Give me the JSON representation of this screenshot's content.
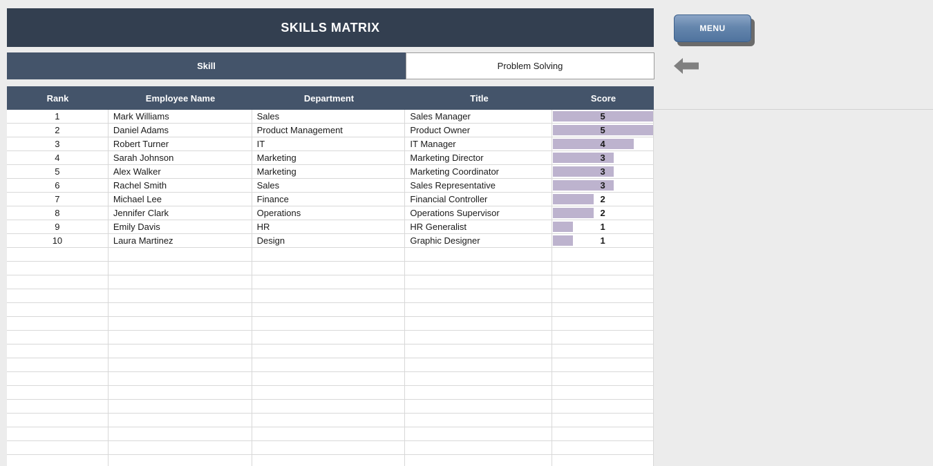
{
  "page": {
    "title": "SKILLS MATRIX"
  },
  "menu_button": {
    "label": "MENU"
  },
  "selector": {
    "label": "Skill",
    "value": "Problem Solving"
  },
  "icons": {
    "back_arrow": "left-arrow"
  },
  "colors": {
    "title_bar": "#333F50",
    "table_header": "#44546A",
    "score_bar": "#BDB3CE",
    "menu_button": "#5F80A9"
  },
  "table": {
    "headers": [
      "Rank",
      "Employee Name",
      "Department",
      "Title",
      "Score"
    ],
    "max_score": 5,
    "rows": [
      {
        "rank": "1",
        "name": "Mark Williams",
        "department": "Sales",
        "title": "Sales Manager",
        "score": 5
      },
      {
        "rank": "2",
        "name": "Daniel Adams",
        "department": "Product Management",
        "title": "Product Owner",
        "score": 5
      },
      {
        "rank": "3",
        "name": "Robert Turner",
        "department": "IT",
        "title": "IT Manager",
        "score": 4
      },
      {
        "rank": "4",
        "name": "Sarah Johnson",
        "department": "Marketing",
        "title": "Marketing Director",
        "score": 3
      },
      {
        "rank": "5",
        "name": "Alex Walker",
        "department": "Marketing",
        "title": "Marketing Coordinator",
        "score": 3
      },
      {
        "rank": "6",
        "name": "Rachel Smith",
        "department": "Sales",
        "title": "Sales Representative",
        "score": 3
      },
      {
        "rank": "7",
        "name": "Michael Lee",
        "department": "Finance",
        "title": "Financial Controller",
        "score": 2
      },
      {
        "rank": "8",
        "name": "Jennifer Clark",
        "department": "Operations",
        "title": "Operations Supervisor",
        "score": 2
      },
      {
        "rank": "9",
        "name": "Emily Davis",
        "department": "HR",
        "title": "HR Generalist",
        "score": 1
      },
      {
        "rank": "10",
        "name": "Laura Martinez",
        "department": "Design",
        "title": "Graphic Designer",
        "score": 1
      }
    ]
  }
}
